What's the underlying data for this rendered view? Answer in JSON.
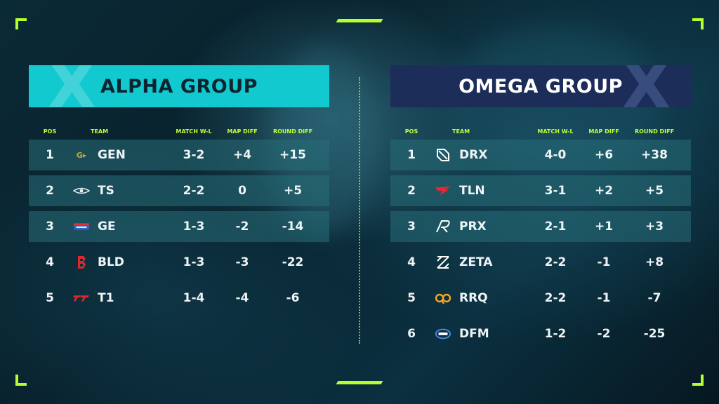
{
  "alpha": {
    "title": "ALPHA GROUP",
    "headers": {
      "pos": "POS",
      "team": "TEAM",
      "match": "MATCH W-L",
      "map": "MAP DIFF",
      "round": "ROUND DIFF"
    },
    "rows": [
      {
        "pos": "1",
        "team": "GEN",
        "match": "3-2",
        "map": "+4",
        "round": "+15",
        "logo": "gen-icon"
      },
      {
        "pos": "2",
        "team": "TS",
        "match": "2-2",
        "map": "0",
        "round": "+5",
        "logo": "ts-icon"
      },
      {
        "pos": "3",
        "team": "GE",
        "match": "1-3",
        "map": "-2",
        "round": "-14",
        "logo": "ge-icon"
      },
      {
        "pos": "4",
        "team": "BLD",
        "match": "1-3",
        "map": "-3",
        "round": "-22",
        "logo": "bld-icon"
      },
      {
        "pos": "5",
        "team": "T1",
        "match": "1-4",
        "map": "-4",
        "round": "-6",
        "logo": "t1-icon"
      }
    ]
  },
  "omega": {
    "title": "OMEGA GROUP",
    "headers": {
      "pos": "POS",
      "team": "TEAM",
      "match": "MATCH W-L",
      "map": "MAP DIFF",
      "round": "ROUND DIFF"
    },
    "rows": [
      {
        "pos": "1",
        "team": "DRX",
        "match": "4-0",
        "map": "+6",
        "round": "+38",
        "logo": "drx-icon"
      },
      {
        "pos": "2",
        "team": "TLN",
        "match": "3-1",
        "map": "+2",
        "round": "+5",
        "logo": "tln-icon"
      },
      {
        "pos": "3",
        "team": "PRX",
        "match": "2-1",
        "map": "+1",
        "round": "+3",
        "logo": "prx-icon"
      },
      {
        "pos": "4",
        "team": "ZETA",
        "match": "2-2",
        "map": "-1",
        "round": "+8",
        "logo": "zeta-icon"
      },
      {
        "pos": "5",
        "team": "RRQ",
        "match": "2-2",
        "map": "-1",
        "round": "-7",
        "logo": "rrq-icon"
      },
      {
        "pos": "6",
        "team": "DFM",
        "match": "1-2",
        "map": "-2",
        "round": "-25",
        "logo": "dfm-icon"
      }
    ]
  },
  "colors": {
    "accent": "#b4ff2e",
    "alpha_banner": "#12c9cf",
    "omega_banner": "#1d2d5a",
    "row_highlight": "#286e78"
  }
}
